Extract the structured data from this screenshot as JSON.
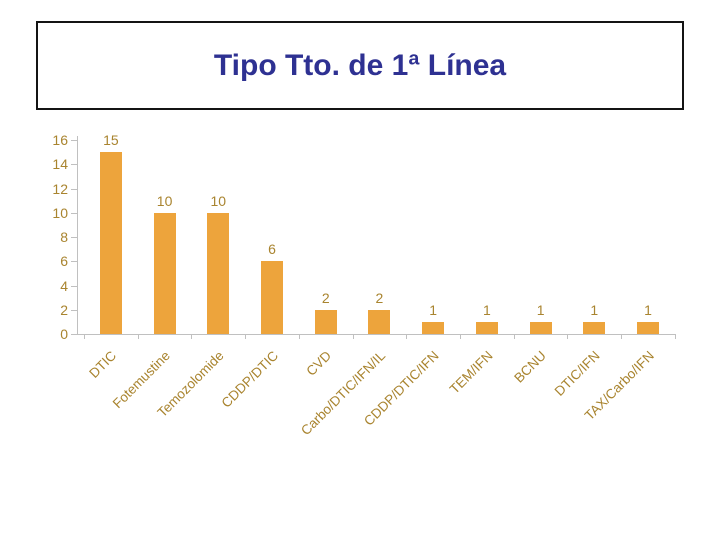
{
  "slide": {
    "title": "Tipo Tto. de 1ª Línea"
  },
  "chart_data": {
    "type": "bar",
    "title": "Tipo Tto. de 1ª Línea",
    "categories": [
      "DTIC",
      "Fotemustine",
      "Temozolomide",
      "CDDP/DTIC",
      "CVD",
      "Carbo/DTIC/IFN/IL",
      "CDDP/DTIC/IFN",
      "TEM/IFN",
      "BCNU",
      "DTIC/IFN",
      "TAX/Carbo/IFN"
    ],
    "values": [
      15,
      10,
      10,
      6,
      2,
      2,
      1,
      1,
      1,
      1,
      1
    ],
    "xlabel": "",
    "ylabel": "",
    "ylim": [
      0,
      16
    ],
    "ytick_step": 2,
    "grid": false,
    "legend_position": "none",
    "data_labels": true,
    "x_label_rotation_deg": -45,
    "colors": {
      "bar": "#EDA43C",
      "labels": "#A9842F",
      "axis": "#C0C0C0",
      "title": "#2E3192",
      "background": "#FFFFFF",
      "title_box_border": "#141414"
    }
  }
}
